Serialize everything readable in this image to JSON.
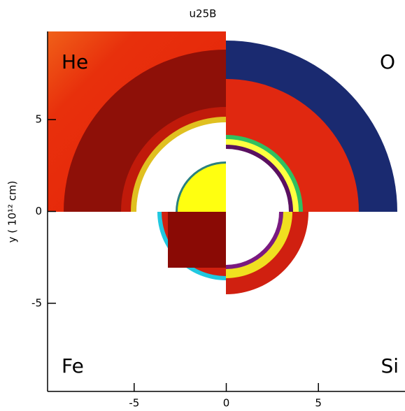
{
  "chart_data": {
    "type": "image",
    "title": "u25B",
    "ylabel": "y ( 10¹² cm)",
    "panel_labels": [
      "He",
      "O",
      "Fe",
      "Si"
    ],
    "xlim": [
      -9.7,
      9.7
    ],
    "ylim": [
      -9.8,
      9.8
    ],
    "xticks": [
      -5,
      0,
      5
    ],
    "yticks": [
      -5,
      0,
      5
    ]
  }
}
